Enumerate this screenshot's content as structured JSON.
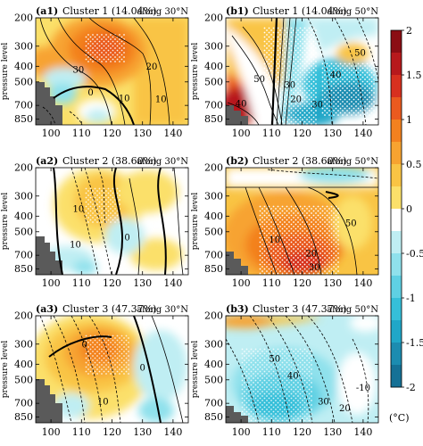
{
  "figure": {
    "colorbar": {
      "unit_label": "(°C)",
      "ticks": [
        "2",
        "1.5",
        "1",
        "0.5",
        "0",
        "-0.5",
        "-1",
        "-1.5",
        "-2"
      ],
      "colors": [
        "#8b0e14",
        "#b7191c",
        "#d7301f",
        "#ea5a1f",
        "#f3811f",
        "#f7a330",
        "#f9c444",
        "#fbe06a",
        "#ffffff",
        "#bfeef3",
        "#8fe1ec",
        "#5fd0e3",
        "#35bfd9",
        "#20a7c8",
        "#1c8cb0",
        "#157196"
      ]
    },
    "axes": {
      "ylabel": "pressure level",
      "x_ticks": [
        "100",
        "110",
        "120",
        "130",
        "140"
      ],
      "x_values": [
        100,
        110,
        120,
        130,
        140
      ],
      "y_ticks": [
        "200",
        "300",
        "400",
        "500",
        "700",
        "850"
      ],
      "y_values": [
        200,
        300,
        400,
        500,
        700,
        850
      ]
    },
    "panels": [
      {
        "id": "(a1)",
        "title": "Cluster 1 (14.04%)",
        "lat": "along 30°N",
        "contour_labels": [
          {
            "text": "30",
            "x": 109,
            "p": 420
          },
          {
            "text": "20",
            "x": 133,
            "p": 400
          },
          {
            "text": "10",
            "x": 124,
            "p": 630
          },
          {
            "text": "10",
            "x": 136,
            "p": 640
          },
          {
            "text": "0",
            "x": 113,
            "p": 580
          }
        ]
      },
      {
        "id": "(b1)",
        "title": "Cluster 1 (14.04%)",
        "lat": "along 50°N",
        "contour_labels": [
          {
            "text": "50",
            "x": 106,
            "p": 480
          },
          {
            "text": "40",
            "x": 100,
            "p": 680
          },
          {
            "text": "30",
            "x": 116,
            "p": 520
          },
          {
            "text": "20",
            "x": 118,
            "p": 640
          },
          {
            "text": "50",
            "x": 139,
            "p": 330
          },
          {
            "text": "40",
            "x": 131,
            "p": 450
          },
          {
            "text": "30",
            "x": 125,
            "p": 690
          }
        ]
      },
      {
        "id": "(a2)",
        "title": "Cluster 2 (38.60%)",
        "lat": "along 30°N",
        "contour_labels": [
          {
            "text": "0",
            "x": 125,
            "p": 540
          },
          {
            "text": "10",
            "x": 108,
            "p": 600
          },
          {
            "text": "10",
            "x": 109,
            "p": 360
          }
        ]
      },
      {
        "id": "(b2)",
        "title": "Cluster 2 (38.60%)",
        "lat": "along 50°N",
        "contour_labels": [
          {
            "text": "50",
            "x": 136,
            "p": 440
          },
          {
            "text": "30",
            "x": 124,
            "p": 830
          },
          {
            "text": "20",
            "x": 123,
            "p": 680
          },
          {
            "text": "10",
            "x": 111,
            "p": 560
          }
        ]
      },
      {
        "id": "(a3)",
        "title": "Cluster 3 (47.37%)",
        "lat": "along 30°N",
        "contour_labels": [
          {
            "text": "0",
            "x": 111,
            "p": 300
          },
          {
            "text": "10",
            "x": 117,
            "p": 680
          },
          {
            "text": "0",
            "x": 130,
            "p": 420
          }
        ]
      },
      {
        "id": "(b3)",
        "title": "Cluster 3 (47.37%)",
        "lat": "along 50°N",
        "contour_labels": [
          {
            "text": "50",
            "x": 111,
            "p": 370
          },
          {
            "text": "40",
            "x": 117,
            "p": 470
          },
          {
            "text": "30",
            "x": 127,
            "p": 680
          },
          {
            "text": "20",
            "x": 134,
            "p": 750
          },
          {
            "text": "-10",
            "x": 140,
            "p": 560
          }
        ]
      }
    ]
  },
  "chart_data": [
    {
      "type": "heatmap",
      "title": "(a1) Cluster 1 (14.04%) along 30°N",
      "xlabel": "",
      "ylabel": "pressure level",
      "x_range": [
        95,
        145
      ],
      "y_levels": [
        200,
        300,
        400,
        500,
        700,
        850
      ],
      "y_axis": "inverted (top 200, bottom 850)",
      "colorbar_range": [
        -2,
        2
      ],
      "unit": "°C",
      "shading_anomaly_maxima": [
        {
          "x": 119,
          "p": 320,
          "value": 1.5
        },
        {
          "x": 100,
          "p": 330,
          "value": 0.5
        }
      ],
      "contour_values": [
        30,
        20,
        10,
        0
      ]
    },
    {
      "type": "heatmap",
      "title": "(b1) Cluster 1 (14.04%) along 50°N",
      "xlabel": "",
      "ylabel": "pressure level",
      "x_range": [
        95,
        145
      ],
      "y_levels": [
        200,
        300,
        400,
        500,
        700,
        850
      ],
      "y_axis": "inverted",
      "colorbar_range": [
        -2,
        2
      ],
      "unit": "°C",
      "shading_anomaly_maxima": [
        {
          "x": 102,
          "p": 700,
          "value": 1.8
        },
        {
          "x": 132,
          "p": 600,
          "value": -1.5
        }
      ],
      "contour_values": [
        50,
        40,
        30,
        20
      ]
    },
    {
      "type": "heatmap",
      "title": "(a2) Cluster 2 (38.60%) along 30°N",
      "xlabel": "",
      "ylabel": "pressure level",
      "x_range": [
        95,
        145
      ],
      "y_levels": [
        200,
        300,
        400,
        500,
        700,
        850
      ],
      "y_axis": "inverted",
      "colorbar_range": [
        -2,
        2
      ],
      "unit": "°C",
      "shading_anomaly_maxima": [
        {
          "x": 116,
          "p": 330,
          "value": 0.9
        },
        {
          "x": 120,
          "p": 750,
          "value": -0.7
        }
      ],
      "contour_values": [
        10,
        0
      ]
    },
    {
      "type": "heatmap",
      "title": "(b2) Cluster 2 (38.60%) along 50°N",
      "xlabel": "",
      "ylabel": "pressure level",
      "x_range": [
        95,
        145
      ],
      "y_levels": [
        200,
        300,
        400,
        500,
        700,
        850
      ],
      "y_axis": "inverted",
      "colorbar_range": [
        -2,
        2
      ],
      "unit": "°C",
      "shading_anomaly_maxima": [
        {
          "x": 118,
          "p": 600,
          "value": 1.7
        },
        {
          "x": 130,
          "p": 220,
          "value": -0.8
        }
      ],
      "contour_values": [
        50,
        30,
        20,
        10
      ]
    },
    {
      "type": "heatmap",
      "title": "(a3) Cluster 3 (47.37%) along 30°N",
      "xlabel": "",
      "ylabel": "pressure level",
      "x_range": [
        95,
        145
      ],
      "y_levels": [
        200,
        300,
        400,
        500,
        700,
        850
      ],
      "y_axis": "inverted",
      "colorbar_range": [
        -2,
        2
      ],
      "unit": "°C",
      "shading_anomaly_maxima": [
        {
          "x": 114,
          "p": 350,
          "value": 1.4
        },
        {
          "x": 133,
          "p": 450,
          "value": -0.6
        }
      ],
      "contour_values": [
        10,
        0
      ]
    },
    {
      "type": "heatmap",
      "title": "(b3) Cluster 3 (47.37%) along 50°N",
      "xlabel": "",
      "ylabel": "pressure level",
      "x_range": [
        95,
        145
      ],
      "y_levels": [
        200,
        300,
        400,
        500,
        700,
        850
      ],
      "y_axis": "inverted",
      "colorbar_range": [
        -2,
        2
      ],
      "unit": "°C",
      "shading_anomaly_maxima": [
        {
          "x": 100,
          "p": 220,
          "value": 0.7
        },
        {
          "x": 112,
          "p": 700,
          "value": -1.6
        }
      ],
      "contour_values": [
        50,
        40,
        30,
        20,
        -10
      ]
    }
  ]
}
